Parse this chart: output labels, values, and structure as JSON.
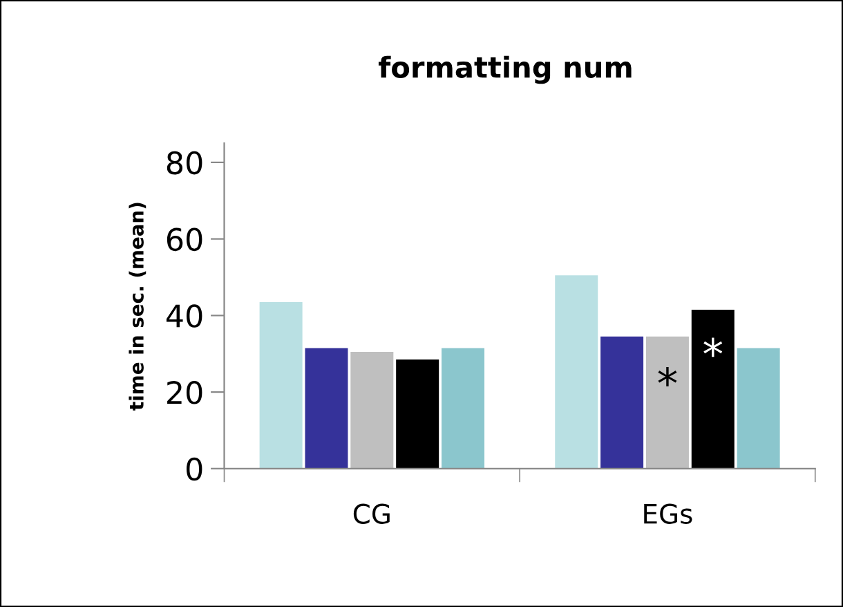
{
  "chart_data": {
    "type": "bar",
    "title": "formatting num",
    "ylabel": "time in sec. (mean)",
    "categories": [
      "CG",
      "EGs"
    ],
    "series": [
      {
        "color": "#b9e0e3",
        "values": [
          43.5,
          50.5
        ]
      },
      {
        "color": "#35329a",
        "values": [
          31.5,
          34.5
        ]
      },
      {
        "color": "#bfbfbf",
        "values": [
          30.5,
          34.5
        ]
      },
      {
        "color": "#000000",
        "values": [
          28.5,
          41.5
        ]
      },
      {
        "color": "#8bc6cd",
        "values": [
          31.5,
          31.5
        ]
      }
    ],
    "annotations": [
      "*",
      "*"
    ],
    "ylim": [
      0,
      85
    ],
    "yticks": [
      0,
      20,
      40,
      60,
      80
    ],
    "grid": false,
    "legend": false
  }
}
